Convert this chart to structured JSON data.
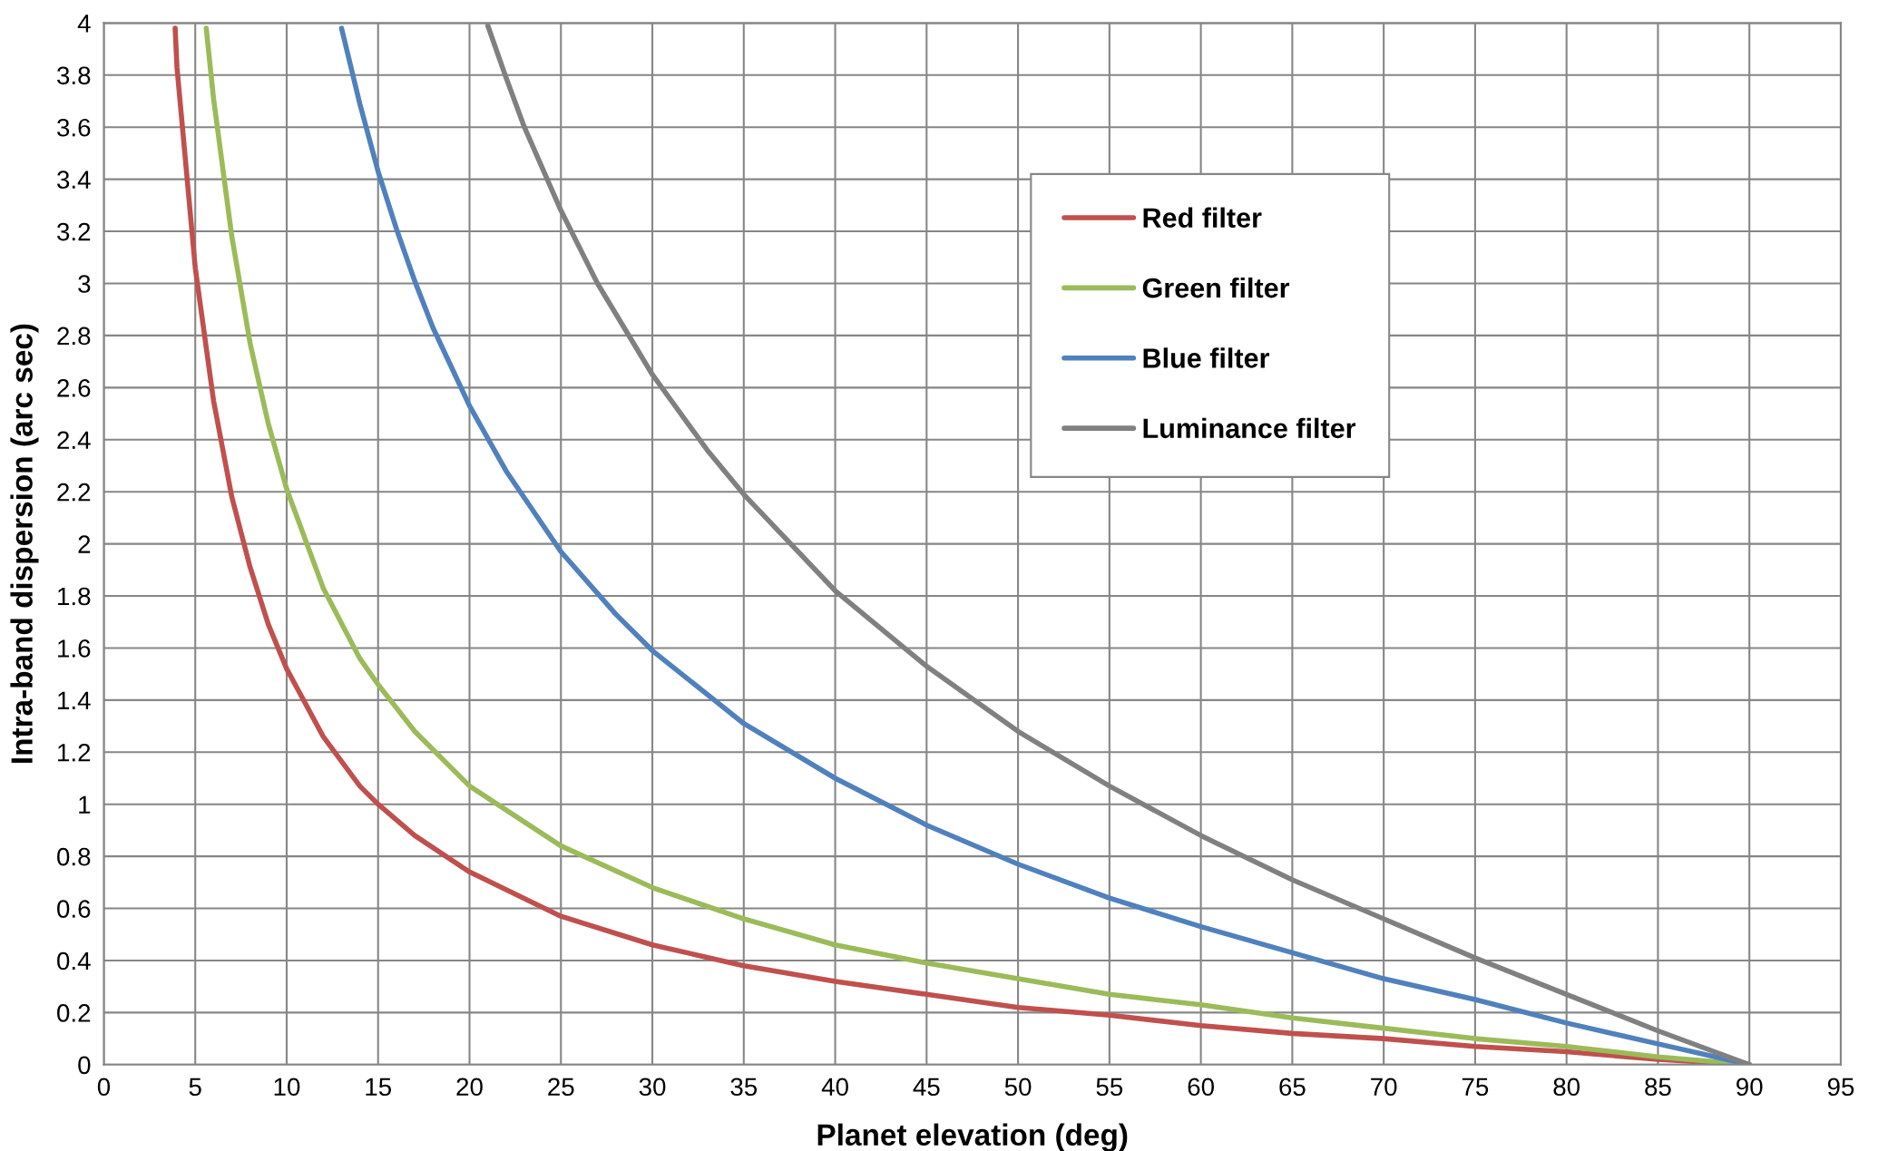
{
  "chart_data": {
    "type": "line",
    "xlabel": "Planet elevation (deg)",
    "ylabel": "Intra-band dispersion (arc sec)",
    "xlim": [
      0,
      95
    ],
    "ylim": [
      0,
      4
    ],
    "xticks": [
      0,
      5,
      10,
      15,
      20,
      25,
      30,
      35,
      40,
      45,
      50,
      55,
      60,
      65,
      70,
      75,
      80,
      85,
      90,
      95
    ],
    "yticks": [
      0,
      0.2,
      0.4,
      0.6,
      0.8,
      1,
      1.2,
      1.4,
      1.6,
      1.8,
      2,
      2.2,
      2.4,
      2.6,
      2.8,
      3,
      3.2,
      3.4,
      3.6,
      3.8,
      4
    ],
    "grid": true,
    "legend": "top right",
    "marker": "none",
    "line_style": "solid",
    "series": [
      {
        "name": "Red filter",
        "color": "#c0504d",
        "x": [
          3.9,
          4,
          5,
          6,
          7,
          8,
          9,
          10,
          12,
          14,
          15,
          17,
          20,
          25,
          30,
          35,
          40,
          45,
          50,
          55,
          60,
          65,
          70,
          75,
          80,
          85,
          90
        ],
        "values": [
          3.98,
          3.83,
          3.06,
          2.55,
          2.18,
          1.91,
          1.69,
          1.52,
          1.26,
          1.07,
          1.0,
          0.88,
          0.74,
          0.57,
          0.46,
          0.38,
          0.32,
          0.27,
          0.22,
          0.19,
          0.15,
          0.12,
          0.1,
          0.07,
          0.05,
          0.02,
          0
        ]
      },
      {
        "name": "Green filter",
        "color": "#9bbb59",
        "x": [
          5.6,
          6,
          7,
          8,
          9,
          10,
          12,
          14,
          15,
          17,
          20,
          25,
          30,
          35,
          40,
          45,
          50,
          55,
          60,
          65,
          70,
          75,
          80,
          85,
          90
        ],
        "values": [
          3.98,
          3.71,
          3.18,
          2.77,
          2.46,
          2.21,
          1.83,
          1.56,
          1.46,
          1.28,
          1.07,
          0.84,
          0.68,
          0.56,
          0.46,
          0.39,
          0.33,
          0.27,
          0.23,
          0.18,
          0.14,
          0.1,
          0.07,
          0.03,
          0
        ]
      },
      {
        "name": "Blue filter",
        "color": "#4f81bd",
        "x": [
          13,
          14,
          15,
          16,
          17,
          18,
          20,
          22,
          25,
          28,
          30,
          35,
          40,
          45,
          50,
          55,
          60,
          65,
          70,
          75,
          80,
          85,
          90
        ],
        "values": [
          3.98,
          3.69,
          3.43,
          3.21,
          3.01,
          2.83,
          2.53,
          2.28,
          1.97,
          1.73,
          1.59,
          1.31,
          1.1,
          0.92,
          0.77,
          0.64,
          0.53,
          0.43,
          0.33,
          0.25,
          0.16,
          0.08,
          0
        ]
      },
      {
        "name": "Luminance filter",
        "color": "#808080",
        "x": [
          21,
          22,
          23,
          25,
          27,
          30,
          33,
          35,
          40,
          45,
          50,
          55,
          60,
          65,
          70,
          75,
          80,
          85,
          90
        ],
        "values": [
          3.99,
          3.79,
          3.6,
          3.28,
          3.0,
          2.65,
          2.36,
          2.19,
          1.82,
          1.53,
          1.28,
          1.07,
          0.88,
          0.71,
          0.56,
          0.41,
          0.27,
          0.13,
          0
        ]
      }
    ]
  }
}
